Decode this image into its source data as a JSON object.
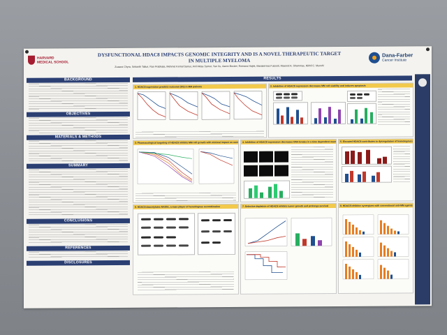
{
  "poster": {
    "title_line1": "DYSFUNCTIONAL HDAC8 IMPACTS GENOMIC INTEGRITY AND IS A NOVEL THERAPEUTIC TARGET",
    "title_line2": "IN MULTIPLE MYELOMA",
    "authors": "Zuzana Chyra, Srikanth Talluri, Rao Prabhala, Mehmet Kemal Samur, Anil Aktas Samur, Yao Xu, Aaron Becker, Romana Hajek, Mariateresa Fulciniti, Masood A. Shammas, Nikhil C. Munshi",
    "left_logo": "HARVARD MEDICAL SCHOOL",
    "right_logo_name": "Dana-Farber",
    "right_logo_sub": "Cancer Institute",
    "sections": {
      "background": "BACKGROUND",
      "objectives": "OBJECTIVES",
      "materials": "MATERIALS & METHODS",
      "summary": "SUMMARY",
      "conclusions": "CONCLUSIONS",
      "references": "REFERENCES",
      "disclosures": "DISCLOSURES",
      "results": "RESULTS"
    },
    "panels": {
      "p1": "1. HDAC8 expression predicts outcome (OS) in MM patients",
      "p2": "2. Inhibition of HDAC8 expression decreases MM cell viability and induces apoptosis",
      "p3": "3. Pharmacological targeting of HDAC8 inhibits MM cell growth with minimal impact on normal cells",
      "p4": "4. Inhibition of HDAC8 expression decreases DNA breaks in a time dependent manner",
      "p5": "5. Elevated HDAC8 contributes to dysregulation of homologous recombination",
      "p6": "6. HDAC8 deacetylates RAD51, a main player of homologous recombination",
      "p7": "7. Selective depletion of HDAC8 inhibits tumor growth and prolongs survival",
      "p8": "8. HDAC8 inhibitor synergizes with conventional anti-MM agents"
    }
  }
}
